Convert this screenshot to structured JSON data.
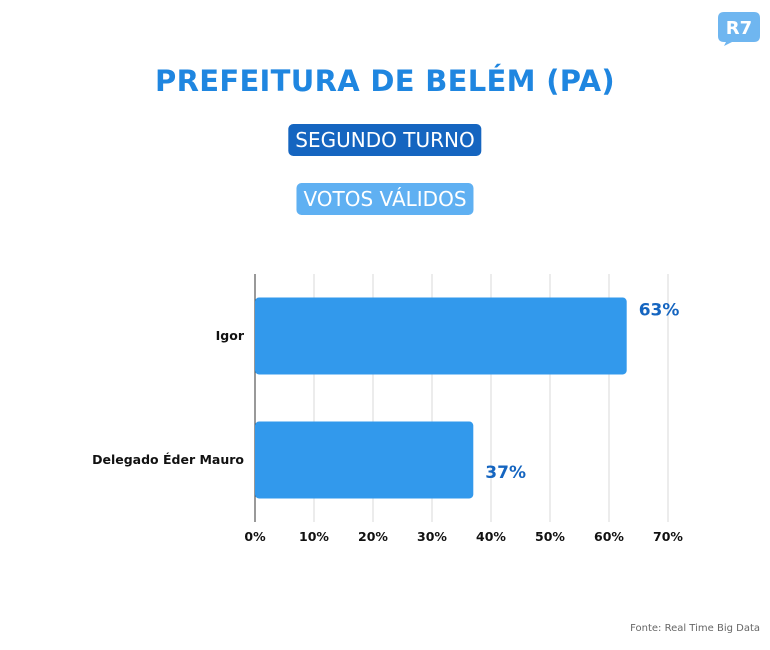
{
  "brand": {
    "logo_text": "R7"
  },
  "header": {
    "title": "PREFEITURA DE BELÉM (PA)",
    "round_badge": "SEGUNDO TURNO",
    "metric_badge": "VOTOS VÁLIDOS"
  },
  "colors": {
    "title": "#1f86e0",
    "round_badge_bg": "#1565c0",
    "metric_badge_bg": "#5fb0f2",
    "bar": "#3299ec",
    "data_label": "#1565c0",
    "grid": "#d9d9d9",
    "logo": "#6fb6f0"
  },
  "chart_data": {
    "type": "bar",
    "orientation": "horizontal",
    "categories": [
      "Igor",
      "Delegado Éder Mauro"
    ],
    "values": [
      63,
      37
    ],
    "data_labels": [
      "63%",
      "37%"
    ],
    "xlim": [
      0,
      70
    ],
    "x_ticks": [
      0,
      10,
      20,
      30,
      40,
      50,
      60,
      70
    ],
    "x_tick_labels": [
      "0%",
      "10%",
      "20%",
      "30%",
      "40%",
      "50%",
      "60%",
      "70%"
    ],
    "grid": true,
    "title": "",
    "xlabel": "",
    "ylabel": ""
  },
  "footer": {
    "source": "Fonte: Real Time Big Data"
  }
}
